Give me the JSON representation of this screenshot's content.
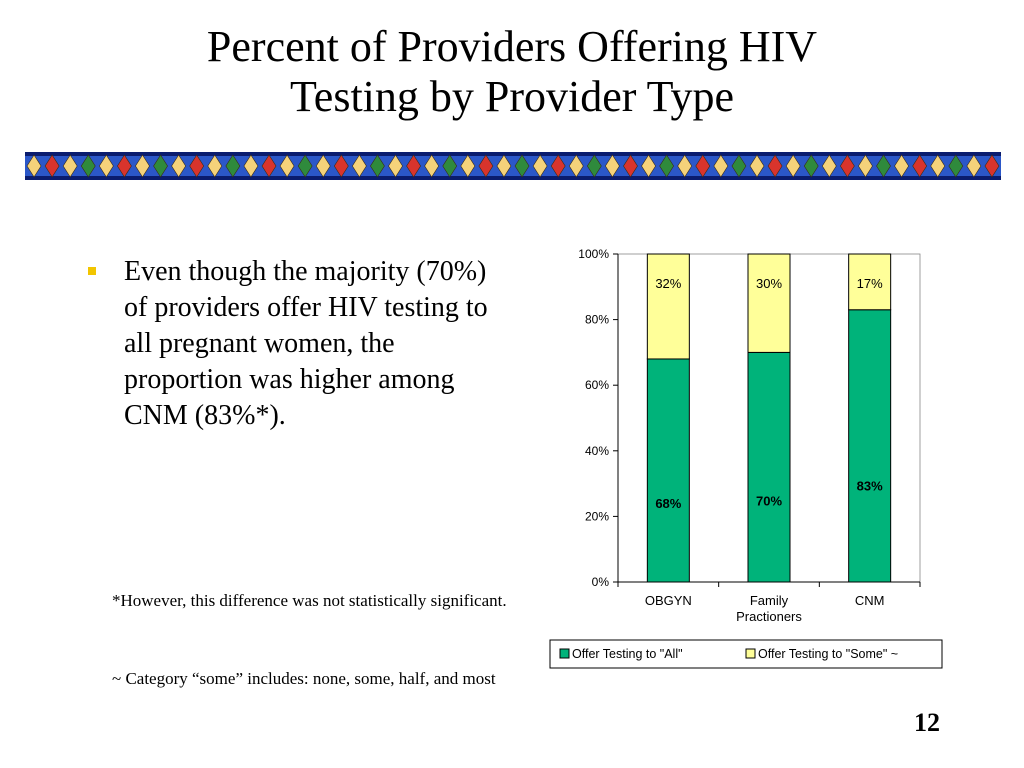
{
  "slide": {
    "title_line1": "Percent of Providers Offering HIV",
    "title_line2": "Testing by Provider Type",
    "bullet": "Even though the majority (70%) of providers offer HIV testing to all pregnant women, the proportion was higher among CNM (83%*).",
    "note1": "*However, this difference was not statistically significant.",
    "note2": "~ Category “some” includes: none, some, half, and most",
    "page_number": "12"
  },
  "colors": {
    "all": "#00b37a",
    "some": "#ffff99",
    "border": "#000000",
    "banner_blue": "#2b57c8",
    "banner_navy": "#0a1c6e"
  },
  "chart_data": {
    "type": "bar",
    "stacked": true,
    "categories": [
      "OBGYN",
      "Family Practioners",
      "CNM"
    ],
    "category_lines": [
      [
        "OBGYN"
      ],
      [
        "Family",
        "Practioners"
      ],
      [
        "CNM"
      ]
    ],
    "series": [
      {
        "name": "Offer Testing to \"All\"",
        "values": [
          68,
          70,
          83
        ],
        "labels": [
          "68%",
          "70%",
          "83%"
        ],
        "color": "#00b37a"
      },
      {
        "name": "Offer Testing to \"Some\" ~",
        "values": [
          32,
          30,
          17
        ],
        "labels": [
          "32%",
          "30%",
          "17%"
        ],
        "color": "#ffff99"
      }
    ],
    "ylim": [
      0,
      100
    ],
    "yticks": [
      0,
      20,
      40,
      60,
      80,
      100
    ],
    "ytick_labels": [
      "0%",
      "20%",
      "40%",
      "60%",
      "80%",
      "100%"
    ],
    "legend_position": "bottom",
    "grid": false
  }
}
